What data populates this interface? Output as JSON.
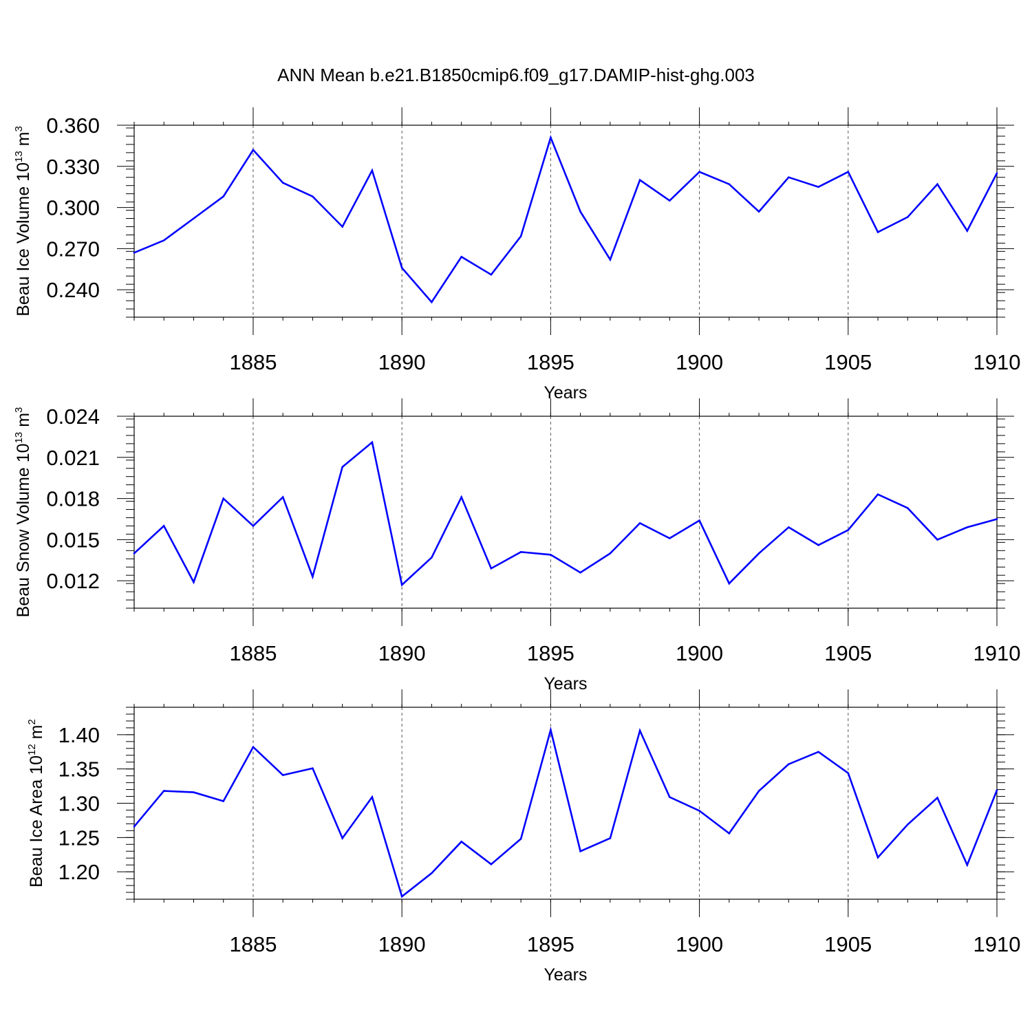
{
  "title": "ANN Mean b.e21.B1850cmip6.f09_g17.DAMIP-hist-ghg.003",
  "colors": {
    "series": "#0000ff",
    "axis": "#000000",
    "grid": "#000000"
  },
  "chart_data": [
    {
      "type": "line",
      "ylabel_main": "Beau Ice Volume 10",
      "ylabel_exp": "13",
      "ylabel_unit": " m",
      "ylabel_unit_exp": "3",
      "xlabel": "Years",
      "xlim": [
        1881,
        1910
      ],
      "ylim": [
        0.22,
        0.36
      ],
      "yticks": [
        "0.240",
        "0.270",
        "0.300",
        "0.330",
        "0.360"
      ],
      "xticks": [
        "1885",
        "1890",
        "1895",
        "1900",
        "1905",
        "1910"
      ],
      "x": [
        1881,
        1882,
        1883,
        1884,
        1885,
        1886,
        1887,
        1888,
        1889,
        1890,
        1891,
        1892,
        1893,
        1894,
        1895,
        1896,
        1897,
        1898,
        1899,
        1900,
        1901,
        1902,
        1903,
        1904,
        1905,
        1906,
        1907,
        1908,
        1909,
        1910
      ],
      "values": [
        0.267,
        0.276,
        0.292,
        0.308,
        0.342,
        0.318,
        0.308,
        0.286,
        0.327,
        0.256,
        0.231,
        0.264,
        0.251,
        0.279,
        0.351,
        0.297,
        0.262,
        0.32,
        0.305,
        0.326,
        0.317,
        0.297,
        0.322,
        0.315,
        0.326,
        0.282,
        0.293,
        0.317,
        0.283,
        0.325
      ]
    },
    {
      "type": "line",
      "ylabel_main": "Beau Snow Volume 10",
      "ylabel_exp": "13",
      "ylabel_unit": " m",
      "ylabel_unit_exp": "3",
      "xlabel": "Years",
      "xlim": [
        1881,
        1910
      ],
      "ylim": [
        0.01,
        0.024
      ],
      "yticks": [
        "0.012",
        "0.015",
        "0.018",
        "0.021",
        "0.024"
      ],
      "xticks": [
        "1885",
        "1890",
        "1895",
        "1900",
        "1905",
        "1910"
      ],
      "x": [
        1881,
        1882,
        1883,
        1884,
        1885,
        1886,
        1887,
        1888,
        1889,
        1890,
        1891,
        1892,
        1893,
        1894,
        1895,
        1896,
        1897,
        1898,
        1899,
        1900,
        1901,
        1902,
        1903,
        1904,
        1905,
        1906,
        1907,
        1908,
        1909,
        1910
      ],
      "values": [
        0.014,
        0.016,
        0.0119,
        0.018,
        0.016,
        0.0181,
        0.0123,
        0.0203,
        0.0221,
        0.0117,
        0.0137,
        0.0181,
        0.0129,
        0.0141,
        0.0139,
        0.0126,
        0.014,
        0.0162,
        0.0151,
        0.0164,
        0.0118,
        0.014,
        0.0159,
        0.0146,
        0.0157,
        0.0183,
        0.0173,
        0.015,
        0.0159,
        0.0165
      ]
    },
    {
      "type": "line",
      "ylabel_main": "Beau Ice Area 10",
      "ylabel_exp": "12",
      "ylabel_unit": " m",
      "ylabel_unit_exp": "2",
      "xlabel": "Years",
      "xlim": [
        1881,
        1910
      ],
      "ylim": [
        1.16,
        1.44
      ],
      "yticks": [
        "1.20",
        "1.25",
        "1.30",
        "1.35",
        "1.40"
      ],
      "xticks": [
        "1885",
        "1890",
        "1895",
        "1900",
        "1905",
        "1910"
      ],
      "x": [
        1881,
        1882,
        1883,
        1884,
        1885,
        1886,
        1887,
        1888,
        1889,
        1890,
        1891,
        1892,
        1893,
        1894,
        1895,
        1896,
        1897,
        1898,
        1899,
        1900,
        1901,
        1902,
        1903,
        1904,
        1905,
        1906,
        1907,
        1908,
        1909,
        1910
      ],
      "values": [
        1.266,
        1.318,
        1.316,
        1.303,
        1.382,
        1.341,
        1.351,
        1.249,
        1.309,
        1.164,
        1.198,
        1.244,
        1.211,
        1.248,
        1.407,
        1.23,
        1.249,
        1.406,
        1.309,
        1.289,
        1.256,
        1.318,
        1.357,
        1.375,
        1.344,
        1.221,
        1.269,
        1.308,
        1.21,
        1.319
      ]
    }
  ]
}
